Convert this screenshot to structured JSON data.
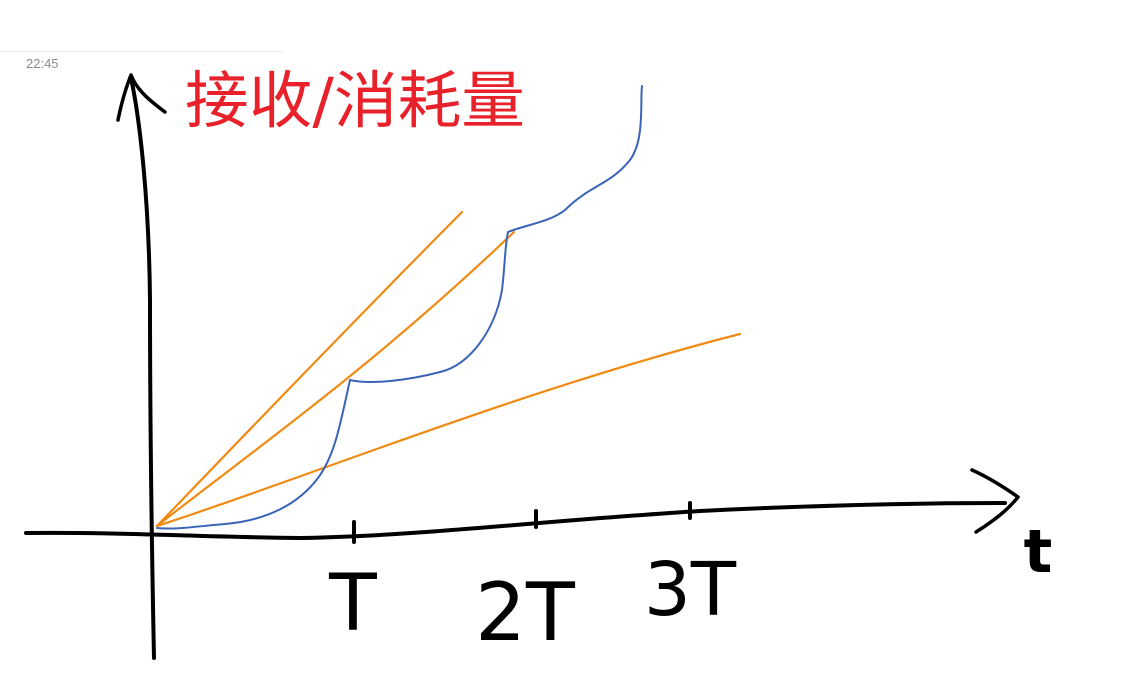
{
  "note": {
    "timestamp": "22:45"
  },
  "diagram": {
    "y_axis_label": "接收/消耗量",
    "x_axis_label": "t",
    "ticks": [
      "T",
      "2T",
      "3T"
    ],
    "colors": {
      "axis": "#000000",
      "label": "#e8212a",
      "rates": "#f08a12",
      "curve": "#3a64b8"
    }
  }
}
